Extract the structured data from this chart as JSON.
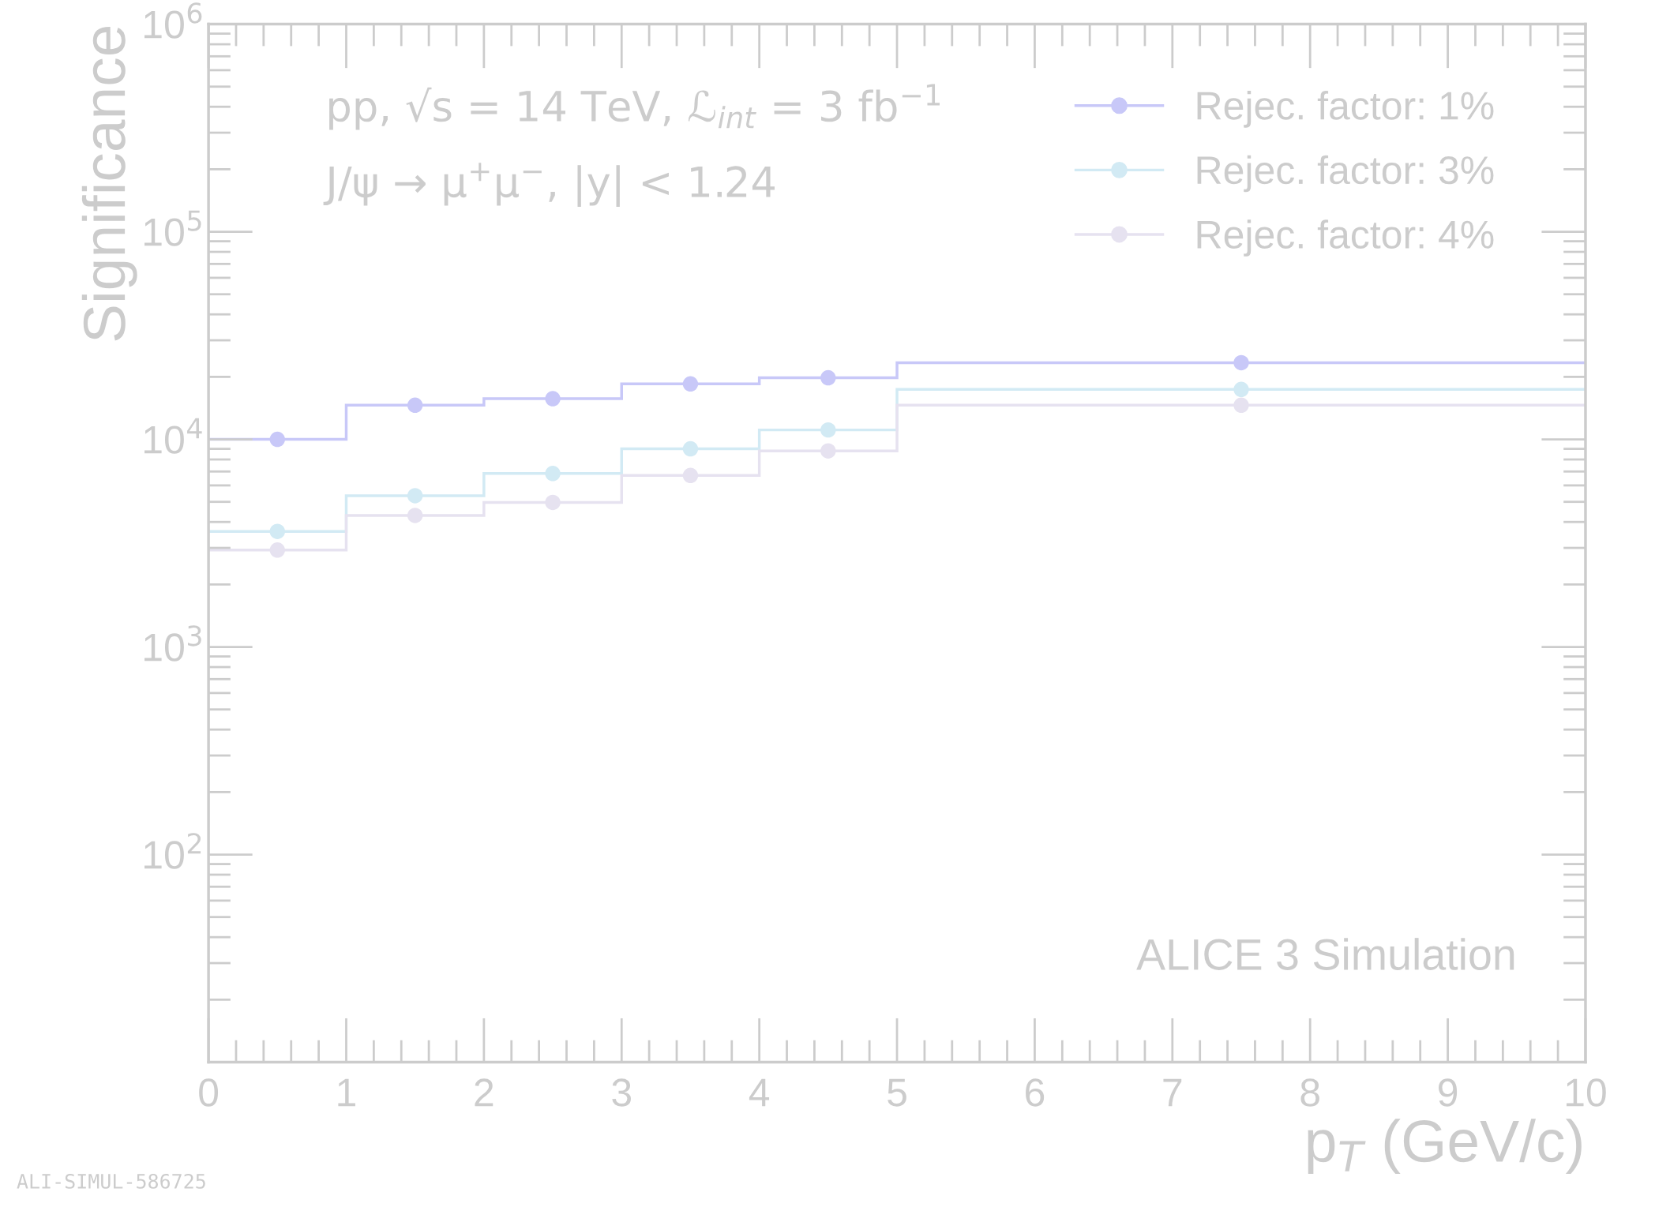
{
  "chart_data": {
    "type": "histogram",
    "xlabel": "p$_{T}$ (GeV/c)",
    "ylabel": "Significance",
    "bins": [
      0,
      1,
      2,
      3,
      4,
      5,
      10
    ],
    "series": [
      {
        "name": "Rejec. factor: 1%",
        "color": "#c8c8f8",
        "values": [
          10000,
          14600,
          15700,
          18500,
          19800,
          23400
        ]
      },
      {
        "name": "Rejec. factor: 3%",
        "color": "#d2eaf4",
        "values": [
          3600,
          5350,
          6850,
          9000,
          11100,
          17400
        ]
      },
      {
        "name": "Rejec. factor: 4%",
        "color": "#e6e2f0",
        "values": [
          2930,
          4300,
          4970,
          6700,
          8800,
          14600
        ]
      },
      {
        "type": "scatter",
        "color": "#c8c8f8",
        "x": [
          0.5,
          1.5,
          2.5,
          3.5,
          4.5,
          7.5
        ],
        "values": [
          10000,
          14600,
          15700,
          18500,
          19800,
          23400
        ]
      },
      {
        "type": "scatter",
        "color": "#d2eaf4",
        "x": [
          0.5,
          1.5,
          2.5,
          3.5,
          4.5,
          7.5
        ],
        "values": [
          3600,
          5350,
          6850,
          9000,
          11100,
          17400
        ]
      },
      {
        "type": "scatter",
        "color": "#e6e2f0",
        "x": [
          0.5,
          1.5,
          2.5,
          3.5,
          4.5,
          7.5
        ],
        "values": [
          2930,
          4300,
          4970,
          6700,
          8800,
          14600
        ]
      }
    ],
    "log": "y",
    "xlim": [
      0,
      10
    ],
    "ylim": [
      10,
      1000000
    ],
    "xticks": [
      0,
      1,
      2,
      3,
      4,
      5,
      6,
      7,
      8,
      9,
      10
    ],
    "yticks": [
      {
        "value": 100,
        "label": "10$^{2}$"
      },
      {
        "value": 1000,
        "label": "10$^{3}$"
      },
      {
        "value": 10000,
        "label": "10$^{4}$"
      },
      {
        "value": 100000,
        "label": "10$^{5}$"
      },
      {
        "value": 1000000,
        "label": "10$^{6}$"
      }
    ],
    "marker": "circle",
    "legend": "top right",
    "grid": false,
    "annotations": [
      "pp, √s = 14 TeV, ℒ$_{int}$ = 3 fb$^{−1}$",
      "J/ψ → μ$^{+}$μ$^{−}$, |y| < 1.24",
      "ALICE 3 Simulation",
      "ALI-SIMUL-586725"
    ]
  }
}
